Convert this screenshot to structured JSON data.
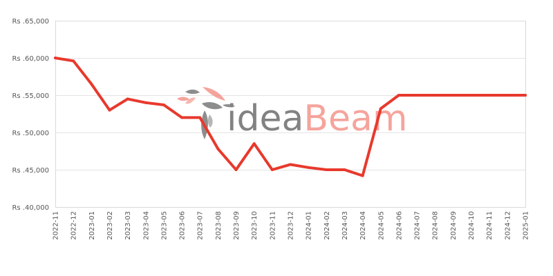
{
  "chart_data": {
    "type": "line",
    "title": "",
    "xlabel": "",
    "ylabel": "",
    "y_prefix": "Rs .",
    "ylim": [
      40000,
      65000
    ],
    "y_ticks": [
      "Rs .40,000",
      "Rs .45,000",
      "Rs .50,000",
      "Rs .55,000",
      "Rs .60,000",
      "Rs .65,000"
    ],
    "y_tick_values": [
      40000,
      45000,
      50000,
      55000,
      60000,
      65000
    ],
    "grid": true,
    "legend": "none",
    "categories": [
      "2022-11",
      "2022-12",
      "2023-01",
      "2023-02",
      "2023-03",
      "2023-04",
      "2023-05",
      "2023-06",
      "2023-07",
      "2023-08",
      "2023-09",
      "2023-10",
      "2023-11",
      "2023-12",
      "2024-01",
      "2024-02",
      "2024-03",
      "2024-04",
      "2024-05",
      "2024-06",
      "2024-07",
      "2024-08",
      "2024-09",
      "2024-10",
      "2024-11",
      "2024-12",
      "2025-01"
    ],
    "series": [
      {
        "color": "#e8392d",
        "points": [
          {
            "x": "2022-11",
            "y": 60000
          },
          {
            "x": "2022-12",
            "y": 59600
          },
          {
            "x": "2023-01",
            "y": 56500
          },
          {
            "x": "2023-02",
            "y": 53000
          },
          {
            "x": "2023-03",
            "y": 54500
          },
          {
            "x": "2023-04",
            "y": 54000
          },
          {
            "x": "2023-05",
            "y": 53700
          },
          {
            "x": "2023-06",
            "y": 52000
          },
          {
            "x": "2023-07",
            "y": 52000
          },
          {
            "x": "2023-08",
            "y": 47800
          },
          {
            "x": "2023-09",
            "y": 45000
          },
          {
            "x": "2023-10",
            "y": 48500
          },
          {
            "x": "2023-11",
            "y": 45000
          },
          {
            "x": "2023-12",
            "y": 45700
          },
          {
            "x": "2024-01",
            "y": 45300
          },
          {
            "x": "2024-02",
            "y": 45000
          },
          {
            "x": "2024-03",
            "y": 45000
          },
          {
            "x": "2024-04",
            "y": 44200
          },
          {
            "x": "2024-05",
            "y": 53200
          },
          {
            "x": "2024-06",
            "y": 55000
          },
          {
            "x": "2024-07",
            "y": 55000
          },
          {
            "x": "2024-08",
            "y": 55000
          },
          {
            "x": "2024-09",
            "y": 55000
          },
          {
            "x": "2024-10",
            "y": 55000
          },
          {
            "x": "2024-11",
            "y": 55000
          },
          {
            "x": "2024-12",
            "y": 55000
          },
          {
            "x": "2025-01",
            "y": 55000
          }
        ]
      }
    ]
  },
  "watermark": {
    "text_part1": "idea",
    "text_part2": "Beam",
    "color_part1": "#6d6d6d",
    "color_part2": "#f4958b",
    "icon": "hummingbird-logo-icon"
  }
}
